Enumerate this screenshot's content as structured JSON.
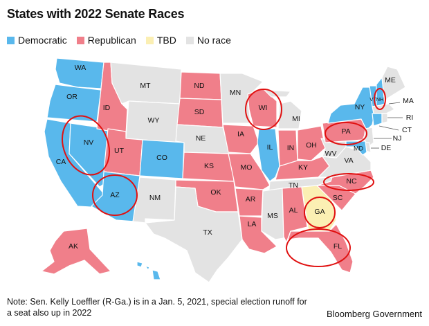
{
  "title": "States with 2022 Senate Races",
  "legend": [
    {
      "key": "dem",
      "label": "Democratic",
      "color": "#59b8ec"
    },
    {
      "key": "rep",
      "label": "Republican",
      "color": "#f07f8a"
    },
    {
      "key": "tbd",
      "label": "TBD",
      "color": "#fbefb3"
    },
    {
      "key": "none",
      "label": "No race",
      "color": "#e3e3e3"
    }
  ],
  "states": {
    "WA": "dem",
    "OR": "dem",
    "CA": "dem",
    "NV": "dem",
    "AZ": "dem",
    "CO": "dem",
    "IL": "dem",
    "NY": "dem",
    "VT": "dem",
    "NH": "dem",
    "CT": "dem",
    "MD": "dem",
    "HI": "dem",
    "ID": "rep",
    "UT": "rep",
    "ND": "rep",
    "SD": "rep",
    "KS": "rep",
    "OK": "rep",
    "IA": "rep",
    "MO": "rep",
    "AR": "rep",
    "LA": "rep",
    "WI": "rep",
    "IN": "rep",
    "OH": "rep",
    "KY": "rep",
    "PA": "rep",
    "NC": "rep",
    "SC": "rep",
    "AL": "rep",
    "FL": "rep",
    "AK": "rep",
    "GA": "tbd",
    "MT": "none",
    "WY": "none",
    "NM": "none",
    "NE": "none",
    "TX": "none",
    "MN": "none",
    "MI": "none",
    "TN": "none",
    "MS": "none",
    "WV": "none",
    "VA": "none",
    "ME": "none",
    "MA": "none",
    "RI": "none",
    "NJ": "none",
    "DE": "none"
  },
  "labels": {
    "WA": "WA",
    "OR": "OR",
    "CA": "CA",
    "NV": "NV",
    "AZ": "AZ",
    "CO": "CO",
    "IL": "IL",
    "NY": "NY",
    "VT": "VT",
    "NH": "NH",
    "CT": "CT",
    "MD": "MD",
    "ID": "ID",
    "UT": "UT",
    "ND": "ND",
    "SD": "SD",
    "KS": "KS",
    "OK": "OK",
    "IA": "IA",
    "MO": "MO",
    "AR": "AR",
    "LA": "LA",
    "WI": "WI",
    "IN": "IN",
    "OH": "OH",
    "KY": "KY",
    "PA": "PA",
    "NC": "NC",
    "SC": "SC",
    "AL": "AL",
    "FL": "FL",
    "AK": "AK",
    "GA": "GA",
    "MT": "MT",
    "WY": "WY",
    "NM": "NM",
    "NE": "NE",
    "TX": "TX",
    "MN": "MN",
    "MI": "MI",
    "TN": "TN",
    "MS": "MS",
    "WV": "WV",
    "VA": "VA",
    "ME": "ME",
    "MA": "MA",
    "RI": "RI",
    "NJ": "NJ",
    "DE": "DE"
  },
  "highlighted": [
    "NV",
    "AZ",
    "WI",
    "PA",
    "NH",
    "NC",
    "GA",
    "FL"
  ],
  "highlight_color": "#e01010",
  "note": "Note: Sen. Kelly Loeffler (R-Ga.) is in a Jan. 5, 2021, special election runoff for a seat also up in 2022",
  "source": "Bloomberg Government"
}
